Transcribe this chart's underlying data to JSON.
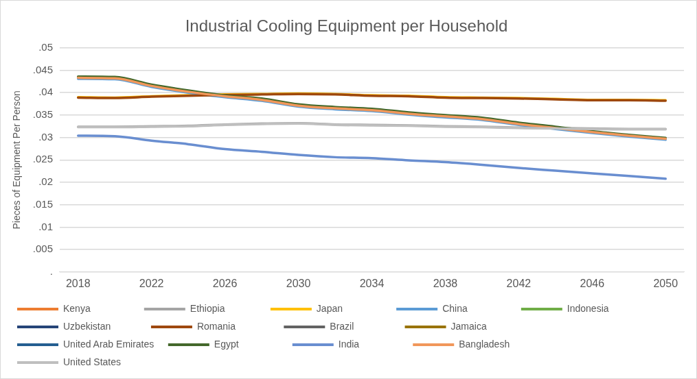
{
  "chart_data": {
    "type": "line",
    "title": "Industrial Cooling Equipment per Household",
    "ylabel": "Pieces of Equipment Per Person",
    "categories": [
      "2018",
      null,
      "2022",
      null,
      "2026",
      null,
      "2030",
      null,
      "2034",
      null,
      "2038",
      null,
      "2042",
      null,
      "2046",
      null,
      "2050"
    ],
    "ylim": [
      0,
      0.05
    ],
    "yticks": [
      {
        "value": 0,
        "label": "."
      },
      {
        "value": 0.005,
        "label": ".005"
      },
      {
        "value": 0.01,
        "label": ".01"
      },
      {
        "value": 0.015,
        "label": ".015"
      },
      {
        "value": 0.02,
        "label": ".02"
      },
      {
        "value": 0.025,
        "label": ".025"
      },
      {
        "value": 0.03,
        "label": ".03"
      },
      {
        "value": 0.035,
        "label": ".035"
      },
      {
        "value": 0.04,
        "label": ".04"
      },
      {
        "value": 0.045,
        "label": ".045"
      },
      {
        "value": 0.05,
        "label": ".05"
      }
    ],
    "grid": "y",
    "legend": "bottom",
    "marker": "none",
    "line_style": "solid",
    "series": [
      {
        "name": "Kenya",
        "color": "#ed7d31",
        "values": [
          null,
          null,
          null,
          null,
          null,
          null,
          null,
          null,
          null,
          null,
          null,
          null,
          null,
          null,
          null,
          null,
          null
        ]
      },
      {
        "name": "Ethiopia",
        "color": "#a5a5a5",
        "values": [
          0.0324,
          0.0324,
          0.0325,
          0.0326,
          0.0329,
          0.0331,
          0.0332,
          0.0329,
          0.0328,
          0.0327,
          0.0325,
          0.0324,
          0.0322,
          0.0321,
          0.032,
          0.0319,
          0.0319
        ]
      },
      {
        "name": "Japan",
        "color": "#ffc000",
        "values": [
          0.039,
          0.0389,
          0.0392,
          0.0394,
          0.0396,
          0.0397,
          0.0398,
          0.0397,
          0.0394,
          0.0393,
          0.039,
          0.0389,
          0.0388,
          0.0386,
          0.0384,
          0.0384,
          0.0383
        ]
      },
      {
        "name": "China",
        "color": "#5b9bd5",
        "values": [
          0.0431,
          0.043,
          0.0413,
          0.04,
          0.039,
          0.0382,
          0.0369,
          0.0363,
          0.0359,
          0.0351,
          0.0345,
          0.0339,
          0.0328,
          0.0319,
          0.031,
          0.0302,
          0.0295
        ]
      },
      {
        "name": "Indonesia",
        "color": "#70ad47",
        "values": [
          null,
          null,
          null,
          null,
          null,
          null,
          null,
          null,
          null,
          null,
          null,
          null,
          null,
          null,
          null,
          null,
          null
        ]
      },
      {
        "name": "Uzbekistan",
        "color": "#264478",
        "values": [
          null,
          null,
          null,
          null,
          null,
          null,
          null,
          null,
          null,
          null,
          null,
          null,
          null,
          null,
          null,
          null,
          null
        ]
      },
      {
        "name": "Romania",
        "color": "#9e480e",
        "values": [
          0.0389,
          0.0388,
          0.0391,
          0.0393,
          0.0395,
          0.0396,
          0.0397,
          0.0396,
          0.0393,
          0.0392,
          0.0389,
          0.0388,
          0.0387,
          0.0385,
          0.0383,
          0.0383,
          0.0382
        ]
      },
      {
        "name": "Brazil",
        "color": "#636363",
        "values": [
          null,
          null,
          null,
          null,
          null,
          null,
          null,
          null,
          null,
          null,
          null,
          null,
          null,
          null,
          null,
          null,
          null
        ]
      },
      {
        "name": "Jamaica",
        "color": "#997300",
        "values": [
          null,
          null,
          null,
          null,
          null,
          null,
          null,
          null,
          null,
          null,
          null,
          null,
          null,
          null,
          null,
          null,
          null
        ]
      },
      {
        "name": "United Arab Emirates",
        "color": "#255e91",
        "values": [
          null,
          null,
          null,
          null,
          null,
          null,
          null,
          null,
          null,
          null,
          null,
          null,
          null,
          null,
          null,
          null,
          null
        ]
      },
      {
        "name": "Egypt",
        "color": "#43682b",
        "values": [
          0.0436,
          0.0435,
          0.0418,
          0.0405,
          0.0394,
          0.0387,
          0.0374,
          0.0368,
          0.0364,
          0.0356,
          0.035,
          0.0344,
          0.0333,
          0.0324,
          0.0314,
          0.0306,
          0.0299
        ]
      },
      {
        "name": "India",
        "color": "#698ed0",
        "values": [
          0.0304,
          0.0303,
          0.0293,
          0.0285,
          0.0274,
          0.0268,
          0.0261,
          0.0256,
          0.0254,
          0.0249,
          0.0245,
          0.0239,
          0.0232,
          0.0226,
          0.022,
          0.0214,
          0.0208
        ]
      },
      {
        "name": "Bangladesh",
        "color": "#f1975a",
        "values": [
          0.0433,
          0.0432,
          0.0415,
          0.0402,
          0.0392,
          0.0384,
          0.0371,
          0.0365,
          0.0361,
          0.0353,
          0.0347,
          0.0341,
          0.033,
          0.0321,
          0.0312,
          0.0304,
          0.0297
        ]
      },
      {
        "name": "United States",
        "color": "#bfbfbf",
        "values": [
          0.0323,
          0.0323,
          0.0324,
          0.0325,
          0.0328,
          0.033,
          0.0331,
          0.0328,
          0.0327,
          0.0326,
          0.0324,
          0.0323,
          0.0321,
          0.032,
          0.0319,
          0.0318,
          0.0318
        ]
      }
    ]
  }
}
